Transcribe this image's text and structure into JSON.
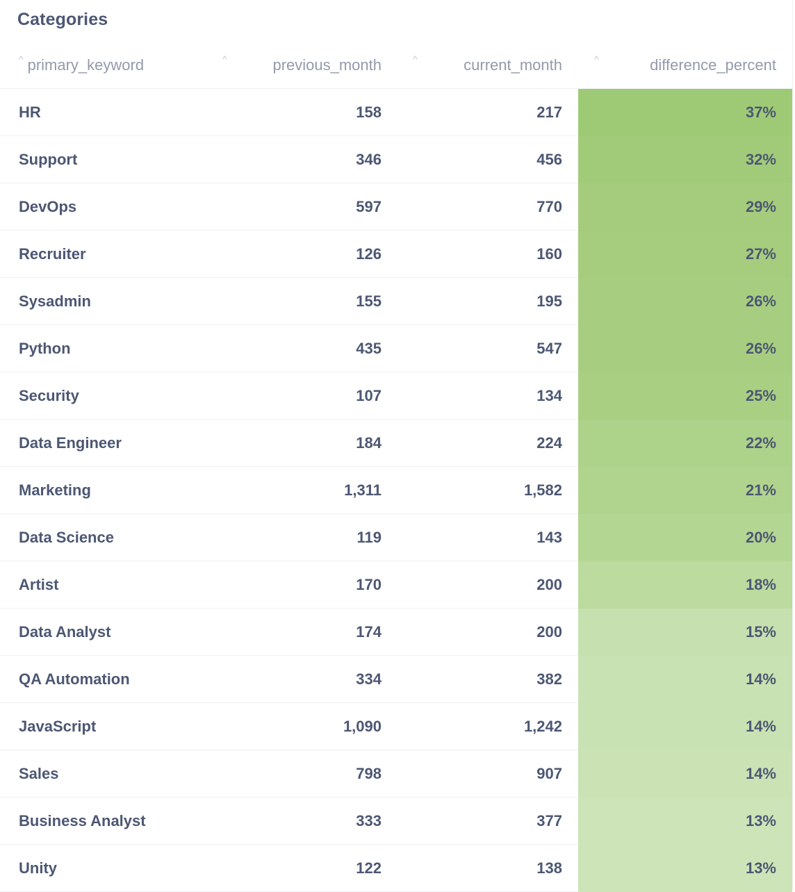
{
  "card": {
    "title": "Categories"
  },
  "table": {
    "headers": {
      "primary_keyword": "primary_keyword",
      "previous_month": "previous_month",
      "current_month": "current_month",
      "difference_percent": "difference_percent"
    },
    "sort_icon": "caret-up-icon",
    "rows": [
      {
        "primary_keyword": "HR",
        "previous_month": "158",
        "current_month": "217",
        "difference_percent": "37%",
        "color": "#9fca75"
      },
      {
        "primary_keyword": "Support",
        "previous_month": "346",
        "current_month": "456",
        "difference_percent": "32%",
        "color": "#a2cb79"
      },
      {
        "primary_keyword": "DevOps",
        "previous_month": "597",
        "current_month": "770",
        "difference_percent": "29%",
        "color": "#a4cc7c"
      },
      {
        "primary_keyword": "Recruiter",
        "previous_month": "126",
        "current_month": "160",
        "difference_percent": "27%",
        "color": "#a6cd7e"
      },
      {
        "primary_keyword": "Sysadmin",
        "previous_month": "155",
        "current_month": "195",
        "difference_percent": "26%",
        "color": "#a7ce80"
      },
      {
        "primary_keyword": "Python",
        "previous_month": "435",
        "current_month": "547",
        "difference_percent": "26%",
        "color": "#a7ce80"
      },
      {
        "primary_keyword": "Security",
        "previous_month": "107",
        "current_month": "134",
        "difference_percent": "25%",
        "color": "#a8cf82"
      },
      {
        "primary_keyword": "Data Engineer",
        "previous_month": "184",
        "current_month": "224",
        "difference_percent": "22%",
        "color": "#add28a"
      },
      {
        "primary_keyword": "Marketing",
        "previous_month": "1,311",
        "current_month": "1,582",
        "difference_percent": "21%",
        "color": "#b0d48e"
      },
      {
        "primary_keyword": "Data Science",
        "previous_month": "119",
        "current_month": "143",
        "difference_percent": "20%",
        "color": "#b3d693"
      },
      {
        "primary_keyword": "Artist",
        "previous_month": "170",
        "current_month": "200",
        "difference_percent": "18%",
        "color": "#bbdb9f"
      },
      {
        "primary_keyword": "Data Analyst",
        "previous_month": "174",
        "current_month": "200",
        "difference_percent": "15%",
        "color": "#c6e0af"
      },
      {
        "primary_keyword": "QA Automation",
        "previous_month": "334",
        "current_month": "382",
        "difference_percent": "14%",
        "color": "#c9e2b3"
      },
      {
        "primary_keyword": "JavaScript",
        "previous_month": "1,090",
        "current_month": "1,242",
        "difference_percent": "14%",
        "color": "#c9e2b3"
      },
      {
        "primary_keyword": "Sales",
        "previous_month": "798",
        "current_month": "907",
        "difference_percent": "14%",
        "color": "#cae2b4"
      },
      {
        "primary_keyword": "Business Analyst",
        "previous_month": "333",
        "current_month": "377",
        "difference_percent": "13%",
        "color": "#cde4b8"
      },
      {
        "primary_keyword": "Unity",
        "previous_month": "122",
        "current_month": "138",
        "difference_percent": "13%",
        "color": "#cde4b8"
      }
    ]
  }
}
